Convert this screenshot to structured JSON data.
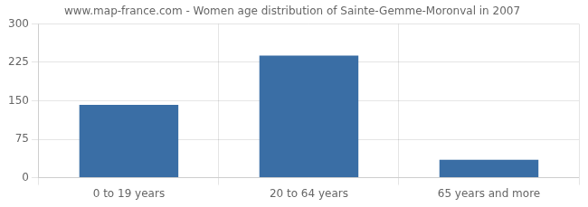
{
  "chart_data": {
    "type": "bar",
    "title": "www.map-france.com - Women age distribution of Sainte-Gemme-Moronval in 2007",
    "categories": [
      "0 to 19 years",
      "20 to 64 years",
      "65 years and more"
    ],
    "values": [
      142,
      238,
      35
    ],
    "color": "#3a6ea5",
    "ylim": [
      0,
      300
    ],
    "yticks": [
      0,
      75,
      150,
      225,
      300
    ],
    "grid": true
  }
}
